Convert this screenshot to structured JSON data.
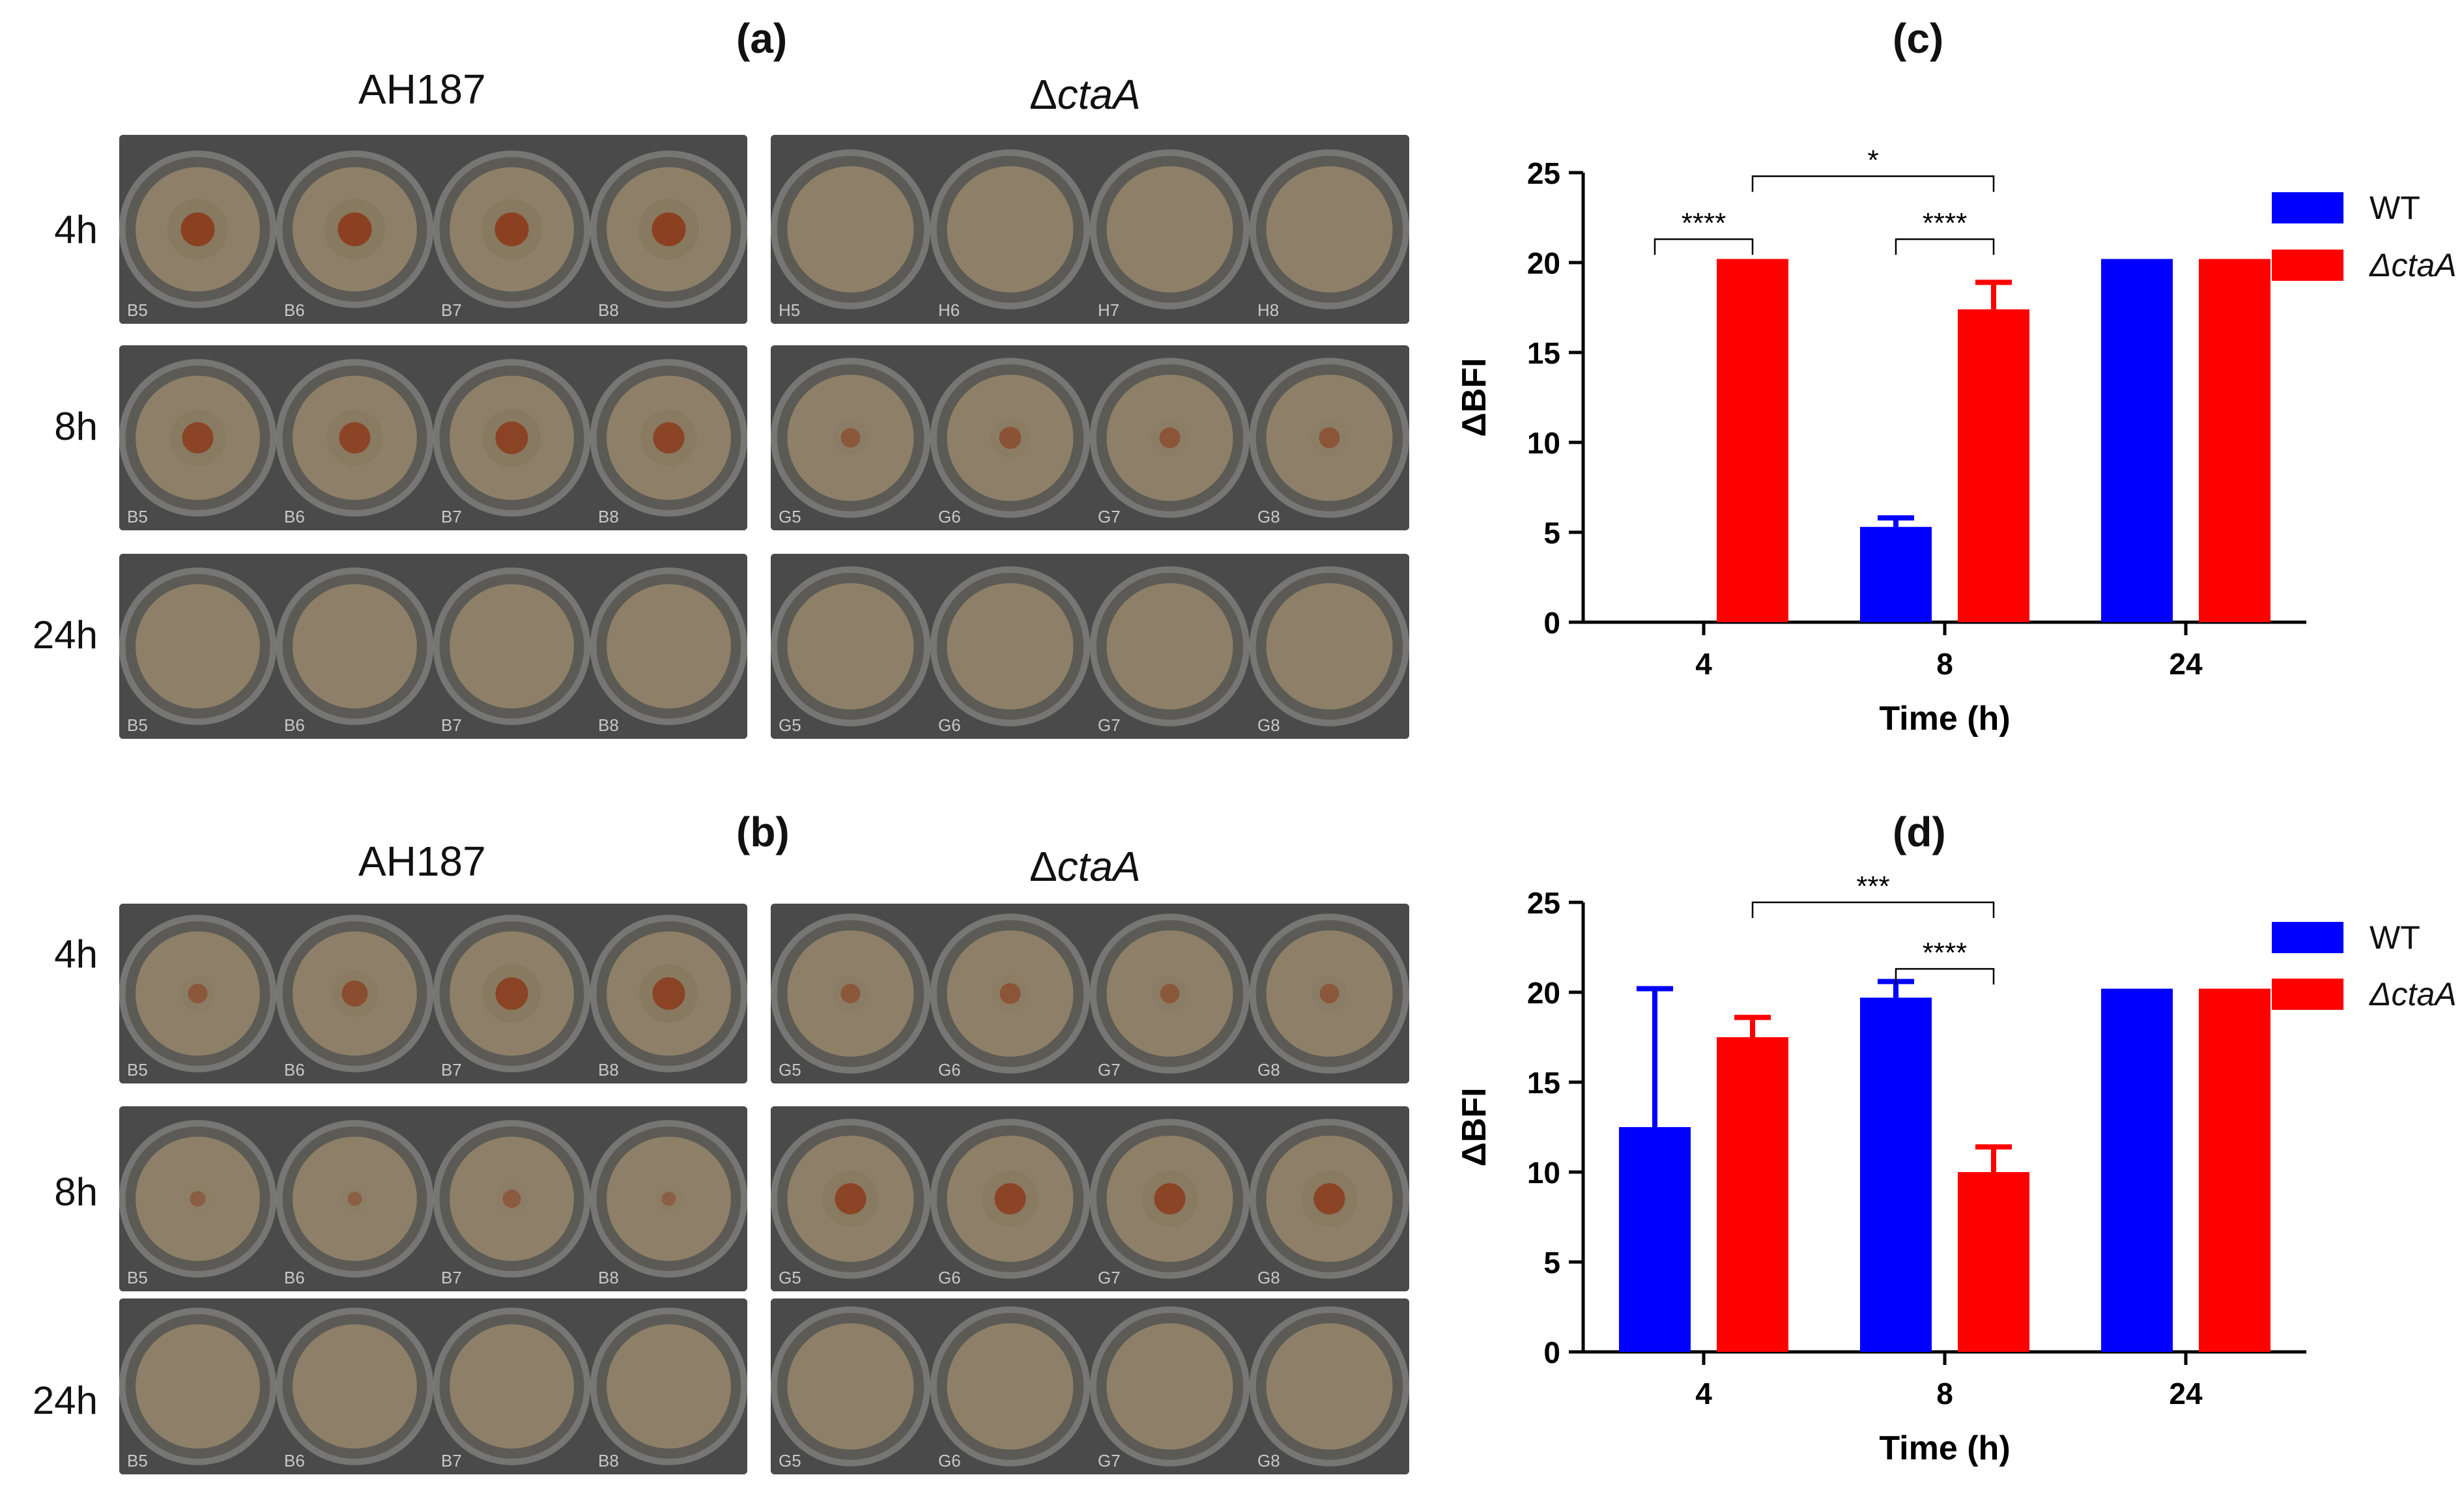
{
  "panel_labels": {
    "a": "(a)",
    "b": "(b)",
    "c": "(c)",
    "d": "(d)"
  },
  "strains": {
    "wt": "AH187",
    "mutant_prefix": "Δ",
    "mutant_italic": "ctaA"
  },
  "time_rows": [
    "4h",
    "8h",
    "24h"
  ],
  "well_labels": {
    "wt": [
      "B5",
      "B6",
      "B7",
      "B8"
    ],
    "mutant_top": [
      "G5",
      "G6",
      "G7",
      "G8"
    ],
    "mutant_bottom": [
      "H5",
      "H6",
      "H7",
      "H8"
    ]
  },
  "plates": {
    "a": {
      "wt": [
        [
          0.9,
          0.9,
          0.9,
          0.9
        ],
        [
          0.8,
          0.8,
          0.85,
          0.8
        ],
        [
          0,
          0,
          0,
          0
        ]
      ],
      "mutant": [
        [
          0,
          0,
          0,
          0
        ],
        [
          0.35,
          0.45,
          0.4,
          0.4
        ],
        [
          0,
          0,
          0,
          0
        ]
      ]
    },
    "b": {
      "wt": [
        [
          0.35,
          0.6,
          0.85,
          0.85
        ],
        [
          0.2,
          0.15,
          0.3,
          0.15
        ],
        [
          0,
          0,
          0,
          0
        ]
      ],
      "mutant": [
        [
          0.35,
          0.4,
          0.35,
          0.35
        ],
        [
          0.8,
          0.8,
          0.8,
          0.8
        ],
        [
          0,
          0,
          0,
          0
        ]
      ]
    }
  },
  "colors": {
    "wt": "#0000ff",
    "mutant": "#ff0000",
    "background": "#ffffff",
    "plate": "#4a4a4a",
    "medium": "#8e8068",
    "colony": "#8b3a1a"
  },
  "chart_data": [
    {
      "id": "c",
      "type": "bar",
      "categories": [
        "4",
        "8",
        "24"
      ],
      "series": [
        {
          "name": "WT",
          "values": [
            0,
            5.3,
            20.2
          ],
          "errors": [
            0,
            0.5,
            0
          ]
        },
        {
          "name": "ΔctaA",
          "values": [
            20.2,
            17.4,
            20.2
          ],
          "errors": [
            0,
            1.5,
            0
          ]
        }
      ],
      "ylabel": "ΔBFI",
      "xlabel": "Time (h)",
      "ylim": [
        0,
        25
      ],
      "yticks": [
        0,
        5,
        10,
        15,
        20,
        25
      ],
      "legend": "top-right",
      "significance": [
        {
          "from": [
            0,
            0
          ],
          "to": [
            0,
            1
          ],
          "label": "****",
          "level": 21.3
        },
        {
          "from": [
            1,
            0
          ],
          "to": [
            1,
            1
          ],
          "label": "****",
          "level": 21.3
        },
        {
          "from": [
            0,
            1
          ],
          "to": [
            1,
            1
          ],
          "label": "*",
          "level": 24.8
        }
      ]
    },
    {
      "id": "d",
      "type": "bar",
      "categories": [
        "4",
        "8",
        "24"
      ],
      "series": [
        {
          "name": "WT",
          "values": [
            12.5,
            19.7,
            20.2
          ],
          "errors": [
            7.7,
            0.9,
            0
          ]
        },
        {
          "name": "ΔctaA",
          "values": [
            17.5,
            10.0,
            20.2
          ],
          "errors": [
            1.1,
            1.4,
            0
          ]
        }
      ],
      "ylabel": "ΔBFI",
      "xlabel": "Time (h)",
      "ylim": [
        0,
        25
      ],
      "yticks": [
        0,
        5,
        10,
        15,
        20,
        25
      ],
      "legend": "top-right",
      "significance": [
        {
          "from": [
            1,
            0
          ],
          "to": [
            1,
            1
          ],
          "label": "****",
          "level": 21.3
        },
        {
          "from": [
            0,
            1
          ],
          "to": [
            1,
            1
          ],
          "label": "***",
          "level": 25.0
        }
      ]
    }
  ]
}
